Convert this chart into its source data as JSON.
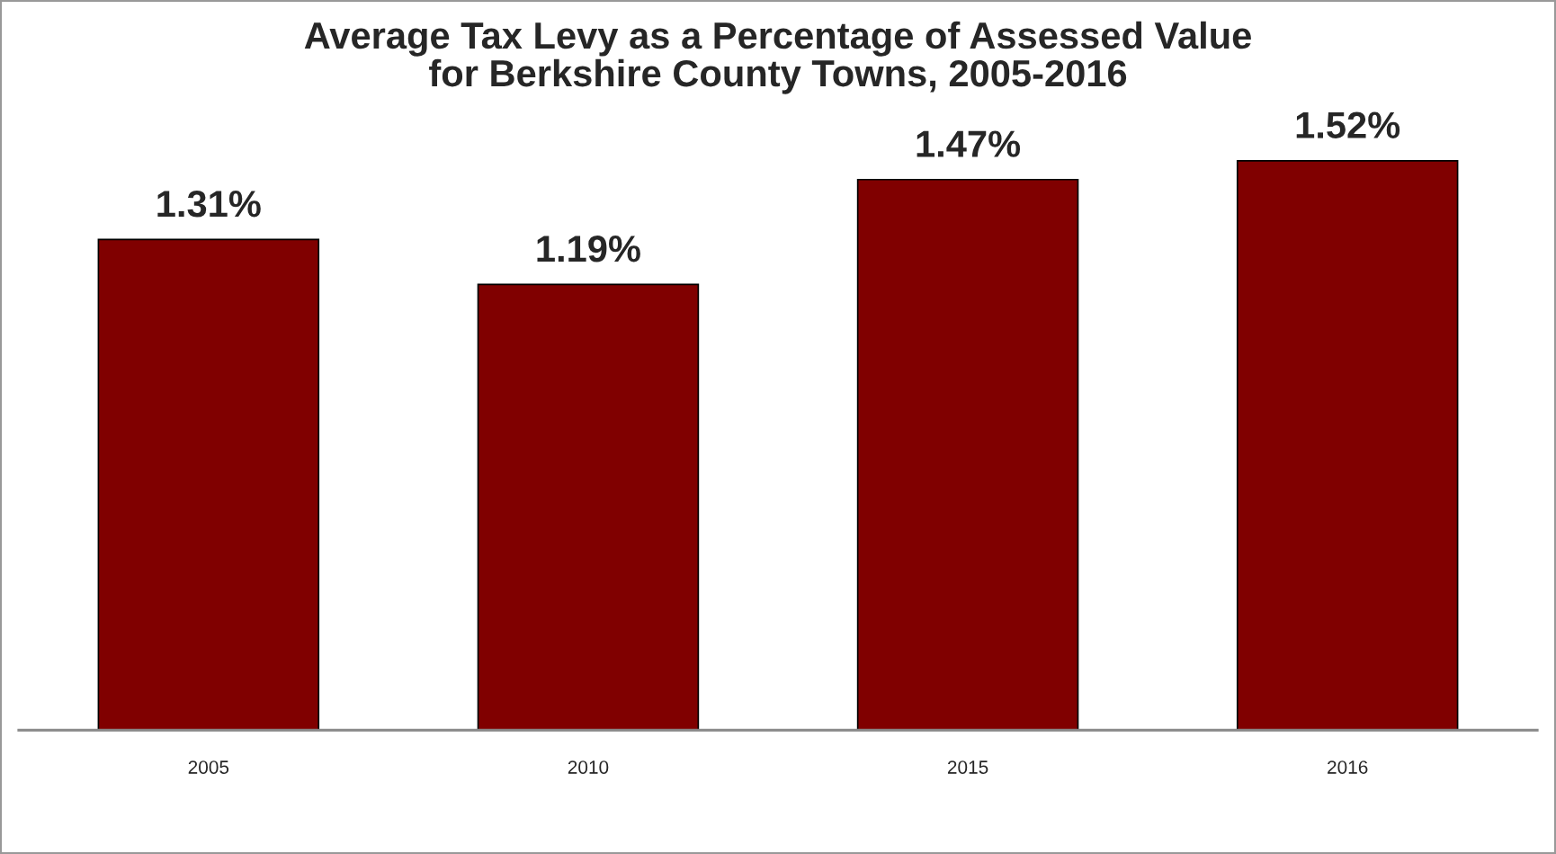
{
  "chart_data": {
    "type": "bar",
    "title": "Average Tax Levy as a Percentage of Assessed Value\nfor Berkshire County Towns, 2005-2016",
    "categories": [
      "2005",
      "2010",
      "2015",
      "2016"
    ],
    "values": [
      1.31,
      1.19,
      1.47,
      1.52
    ],
    "value_labels": [
      "1.31%",
      "1.19%",
      "1.47%",
      "1.52%"
    ],
    "color": "#800000",
    "tick_labels": "x",
    "grid": false,
    "legend": false
  }
}
